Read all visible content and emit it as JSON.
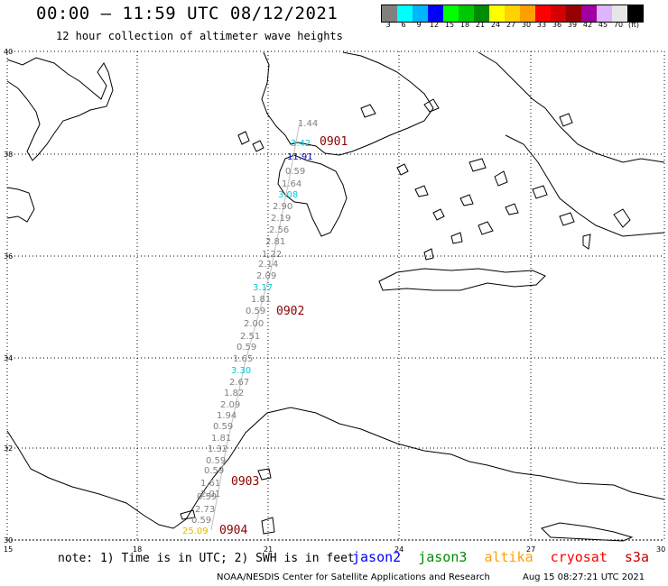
{
  "title": "00:00 — 11:59 UTC 08/12/2021",
  "subtitle": "12 hour collection of altimeter wave heights",
  "legend": {
    "colors": [
      "#808080",
      "#00ffff",
      "#00b4ff",
      "#0000ff",
      "#00ff00",
      "#00c800",
      "#008c00",
      "#ffff00",
      "#ffd200",
      "#ffa000",
      "#ff0000",
      "#d20000",
      "#960000",
      "#a000a0",
      "#dcb4ff",
      "#e6e6e6",
      "#000000"
    ],
    "labels": [
      "3",
      "6",
      "9",
      "12",
      "15",
      "18",
      "21",
      "24",
      "27",
      "30",
      "33",
      "36",
      "39",
      "42",
      "45",
      "70",
      "(ft)"
    ]
  },
  "axes": {
    "lat_labels": [
      "40",
      "38",
      "36",
      "34",
      "32",
      "30"
    ],
    "lon_labels": [
      "15",
      "18",
      "21",
      "24",
      "27",
      "30"
    ]
  },
  "track_values": [
    {
      "v": "1.44",
      "c": "#808080"
    },
    {
      "v": "3.42",
      "c": "#00c8d8"
    },
    {
      "v": "11.91",
      "c": "#0000c8"
    },
    {
      "v": "0.59",
      "c": "#808080"
    },
    {
      "v": "1.64",
      "c": "#808080"
    },
    {
      "v": "3.08",
      "c": "#00c8d8"
    },
    {
      "v": "2.90",
      "c": "#808080"
    },
    {
      "v": "2.19",
      "c": "#808080"
    },
    {
      "v": "2.56",
      "c": "#808080"
    },
    {
      "v": "2.81",
      "c": "#808080"
    },
    {
      "v": "1.22",
      "c": "#808080"
    },
    {
      "v": "2.14",
      "c": "#808080"
    },
    {
      "v": "2.09",
      "c": "#808080"
    },
    {
      "v": "3.17",
      "c": "#00c8d8"
    },
    {
      "v": "1.81",
      "c": "#808080"
    },
    {
      "v": "0.59",
      "c": "#808080"
    },
    {
      "v": "2.00",
      "c": "#808080"
    },
    {
      "v": "2.51",
      "c": "#808080"
    },
    {
      "v": "0.59",
      "c": "#808080"
    },
    {
      "v": "1.65",
      "c": "#808080"
    },
    {
      "v": "3.30",
      "c": "#00c8d8"
    },
    {
      "v": "2.67",
      "c": "#808080"
    },
    {
      "v": "1.82",
      "c": "#808080"
    },
    {
      "v": "2.09",
      "c": "#808080"
    },
    {
      "v": "1.94",
      "c": "#808080"
    },
    {
      "v": "0.59",
      "c": "#808080"
    },
    {
      "v": "1.81",
      "c": "#808080"
    },
    {
      "v": "1.32",
      "c": "#808080"
    },
    {
      "v": "0.59",
      "c": "#808080"
    },
    {
      "v": "0.59",
      "c": "#808080"
    },
    {
      "v": "1.61",
      "c": "#808080"
    },
    {
      "v": "2.01",
      "c": "#808080"
    },
    {
      "v": "0.59",
      "c": "#808080"
    },
    {
      "v": "2.73",
      "c": "#808080"
    },
    {
      "v": "0.59",
      "c": "#808080"
    },
    {
      "v": "25.09",
      "c": "#e6b400"
    }
  ],
  "time_marks": [
    "0901",
    "0902",
    "0903",
    "0904"
  ],
  "time_color": "#8b0000",
  "note": "note: 1) Time is in UTC; 2) SWH is in feet",
  "satellites": [
    {
      "name": "jason2",
      "color": "#0000ff"
    },
    {
      "name": "jason3",
      "color": "#008c00"
    },
    {
      "name": "altika",
      "color": "#ffa000"
    },
    {
      "name": "cryosat",
      "color": "#ff0000"
    },
    {
      "name": "s3a",
      "color": "#c80000"
    }
  ],
  "credit": "NOAA/NESDIS Center for Satellite Applications and Research",
  "timestamp": "Aug 15 08:27:21 UTC 2021"
}
